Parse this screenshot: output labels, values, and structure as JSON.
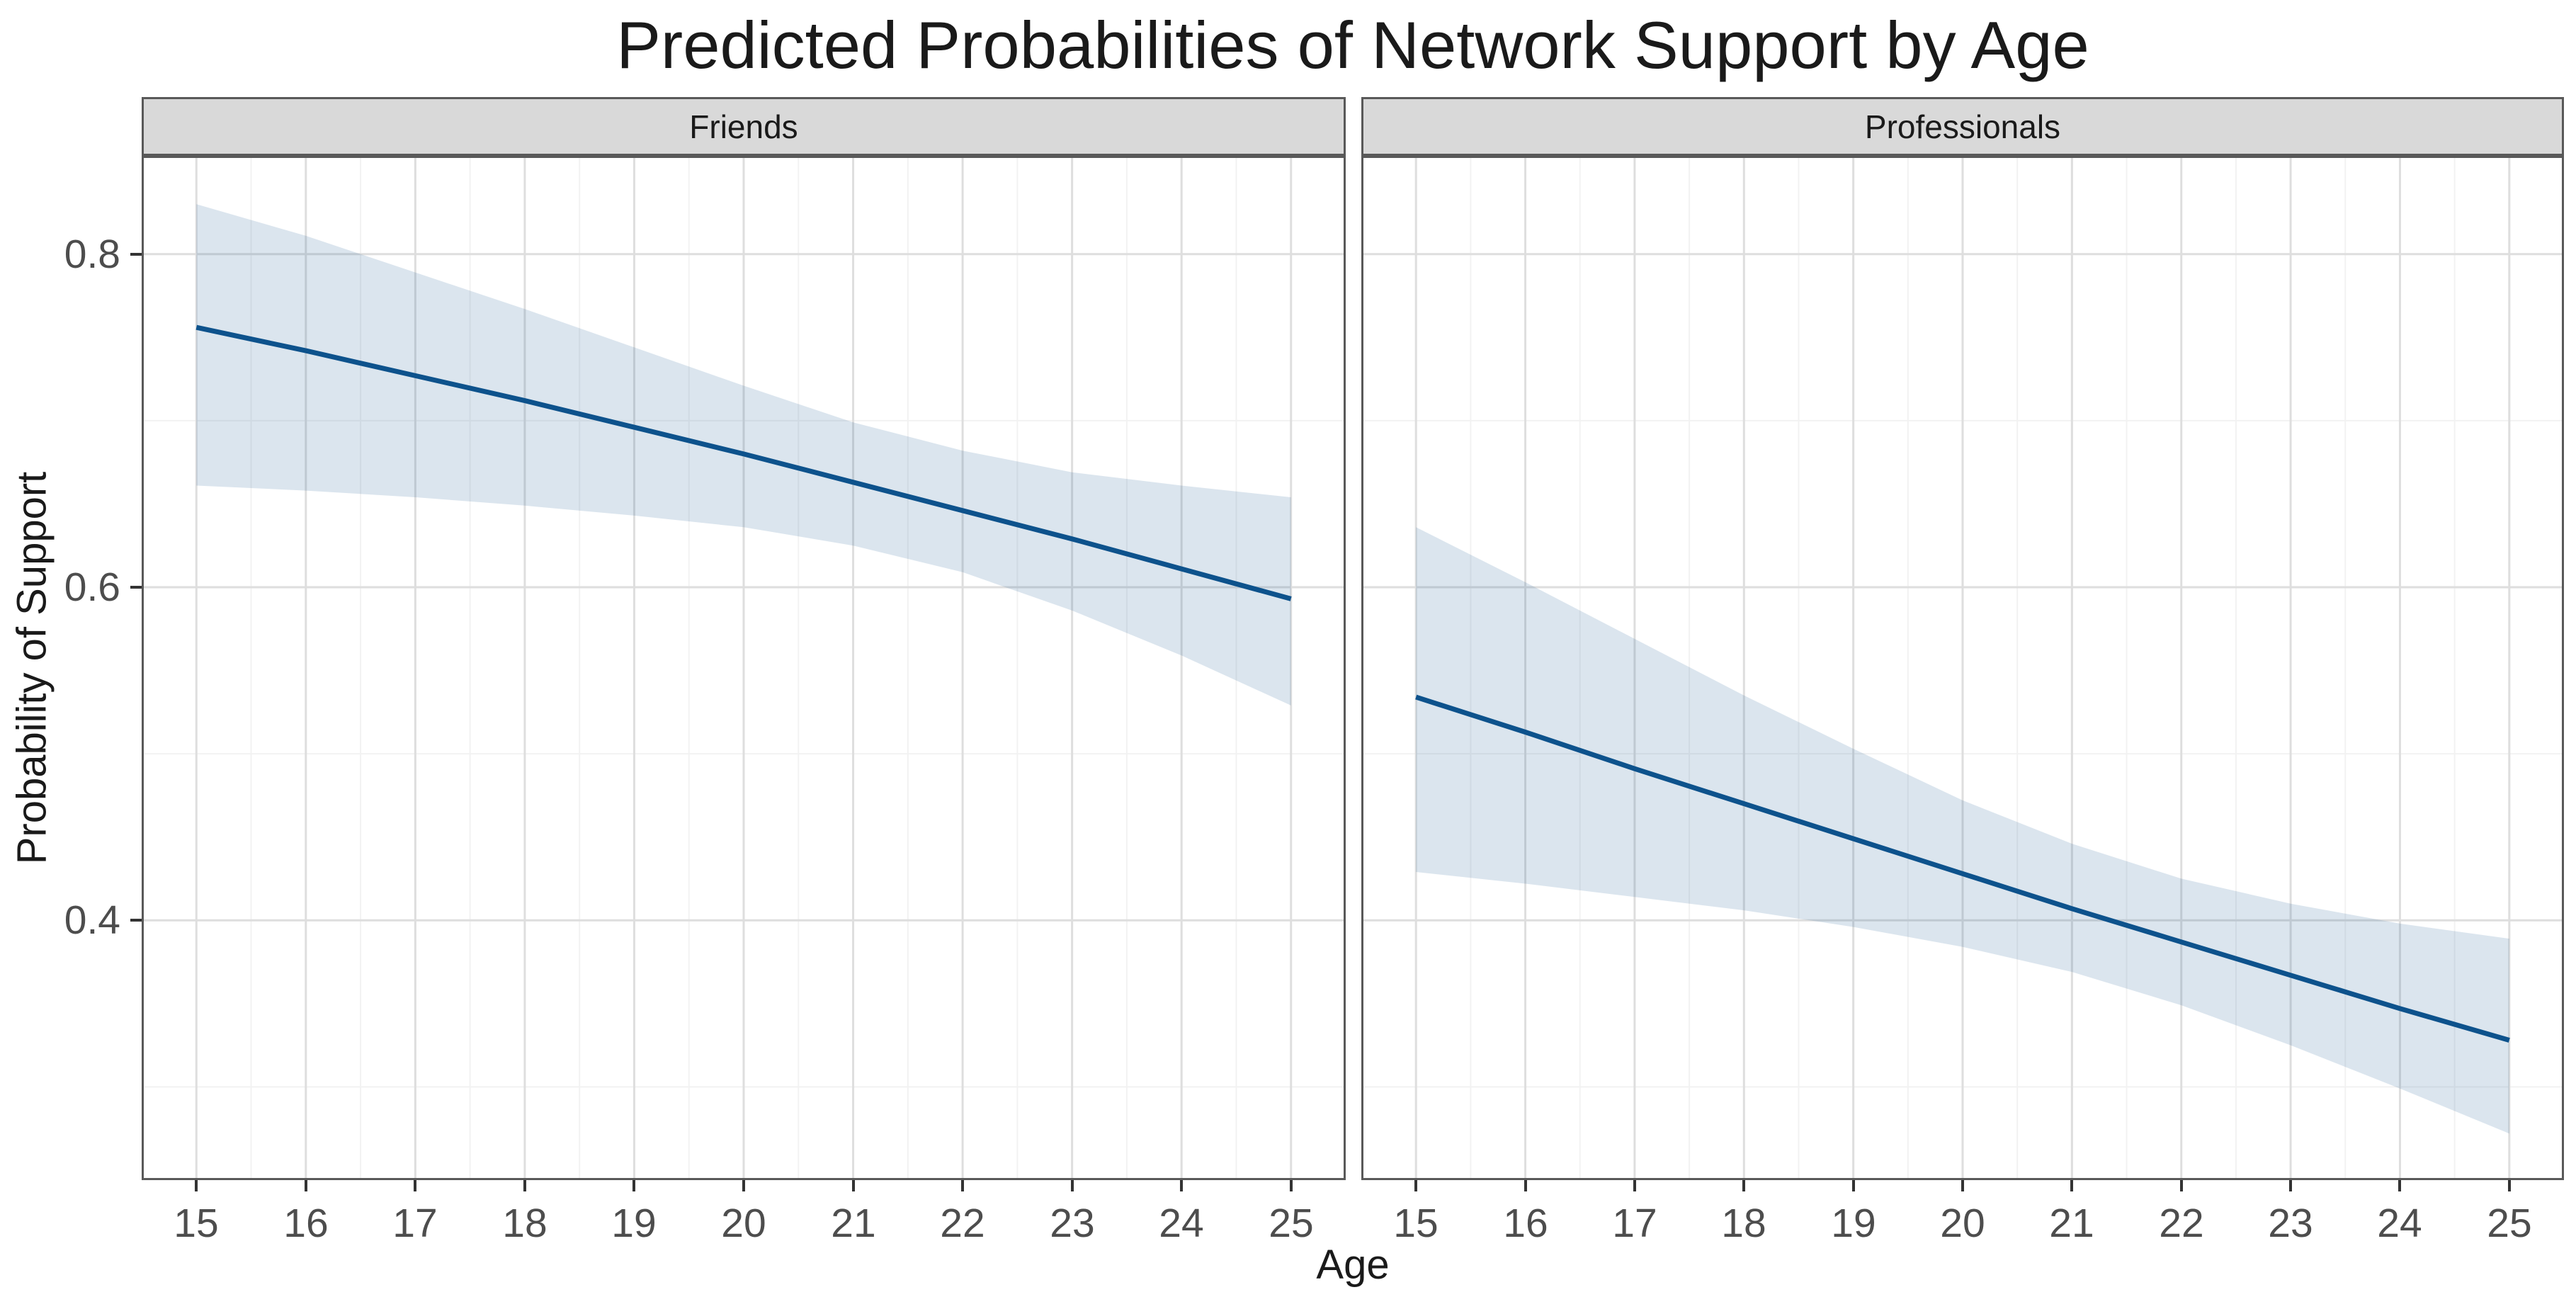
{
  "chart_data": {
    "type": "line",
    "title": "Predicted Probabilities of Network Support by Age",
    "xlabel": "Age",
    "ylabel": "Probability of Support",
    "facet_variable_values": [
      "Friends",
      "Professionals"
    ],
    "x_domain": [
      14.5,
      25.5
    ],
    "y_domain": [
      0.244,
      0.859
    ],
    "x_major_breaks": [
      15,
      16,
      17,
      18,
      19,
      20,
      21,
      22,
      23,
      24,
      25
    ],
    "x_minor_breaks": [
      15.5,
      16.5,
      17.5,
      18.5,
      19.5,
      20.5,
      21.5,
      22.5,
      23.5,
      24.5
    ],
    "y_major_breaks": [
      0.4,
      0.6,
      0.8
    ],
    "y_minor_breaks": [
      0.3,
      0.5,
      0.7
    ],
    "y_tick_labels": [
      "0.4",
      "0.6",
      "0.8"
    ],
    "x_tick_labels": [
      "15",
      "16",
      "17",
      "18",
      "19",
      "20",
      "21",
      "22",
      "23",
      "24",
      "25"
    ],
    "ages": [
      15,
      16,
      17,
      18,
      19,
      20,
      21,
      22,
      23,
      24,
      25
    ],
    "grid": "major and minor, light gray on white",
    "legend": "none",
    "panels": [
      {
        "facet_label": "Friends",
        "fit": [
          0.756,
          0.742,
          0.727,
          0.712,
          0.696,
          0.68,
          0.663,
          0.646,
          0.629,
          0.611,
          0.593
        ],
        "lower": [
          0.661,
          0.658,
          0.654,
          0.649,
          0.643,
          0.636,
          0.625,
          0.609,
          0.586,
          0.559,
          0.529
        ],
        "upper": [
          0.83,
          0.811,
          0.789,
          0.767,
          0.744,
          0.721,
          0.699,
          0.682,
          0.669,
          0.661,
          0.654
        ]
      },
      {
        "facet_label": "Professionals",
        "fit": [
          0.534,
          0.513,
          0.491,
          0.47,
          0.449,
          0.428,
          0.407,
          0.387,
          0.367,
          0.347,
          0.328
        ],
        "lower": [
          0.429,
          0.422,
          0.414,
          0.406,
          0.396,
          0.384,
          0.369,
          0.349,
          0.325,
          0.299,
          0.272
        ],
        "upper": [
          0.636,
          0.603,
          0.569,
          0.535,
          0.503,
          0.472,
          0.446,
          0.425,
          0.41,
          0.398,
          0.389
        ]
      }
    ],
    "colors": {
      "fit_line": "#0D528C",
      "ribbon_fill": "rgba(13,82,140,0.15)",
      "strip_fill": "#D9D9D9",
      "panel_border": "#595959",
      "grid_major": "#DEDEDE",
      "grid_minor": "#F2F2F2",
      "tick_mark": "#333333",
      "tick_text": "#4D4D4D",
      "title_text": "#1A1A1A",
      "panel_background": "#FFFFFF"
    }
  }
}
